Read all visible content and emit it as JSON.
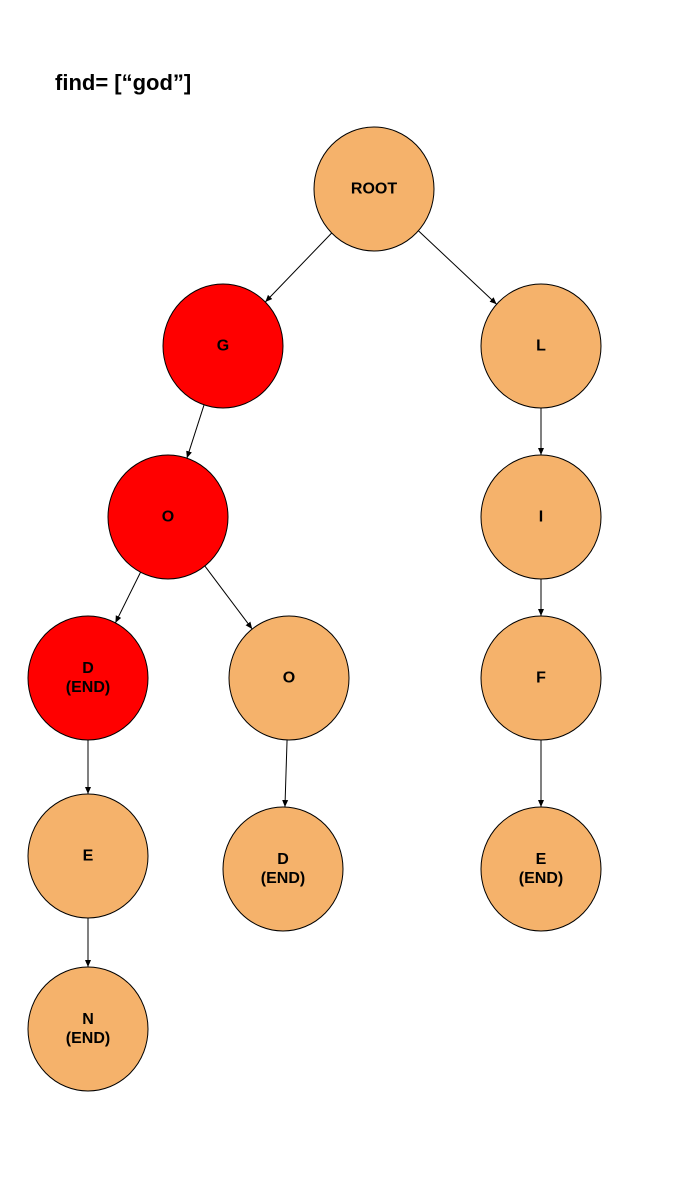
{
  "title": "find= [“god”]",
  "colors": {
    "highlight": "#ff0000",
    "normal": "#f5b26b",
    "stroke": "#000000",
    "edge": "#000000"
  },
  "nodes": [
    {
      "id": "root",
      "lines": [
        "ROOT"
      ],
      "highlight": false
    },
    {
      "id": "g",
      "lines": [
        "G"
      ],
      "highlight": true
    },
    {
      "id": "l",
      "lines": [
        "L"
      ],
      "highlight": false
    },
    {
      "id": "o1",
      "lines": [
        "O"
      ],
      "highlight": true
    },
    {
      "id": "i",
      "lines": [
        "I"
      ],
      "highlight": false
    },
    {
      "id": "d1",
      "lines": [
        "D",
        "(END)"
      ],
      "highlight": true
    },
    {
      "id": "o2",
      "lines": [
        "O"
      ],
      "highlight": false
    },
    {
      "id": "f",
      "lines": [
        "F"
      ],
      "highlight": false
    },
    {
      "id": "e1",
      "lines": [
        "E"
      ],
      "highlight": false
    },
    {
      "id": "d2",
      "lines": [
        "D",
        "(END)"
      ],
      "highlight": false
    },
    {
      "id": "e2",
      "lines": [
        "E",
        "(END)"
      ],
      "highlight": false
    },
    {
      "id": "n",
      "lines": [
        "N",
        "(END)"
      ],
      "highlight": false
    }
  ],
  "edges": [
    {
      "from": "root",
      "to": "g"
    },
    {
      "from": "root",
      "to": "l"
    },
    {
      "from": "g",
      "to": "o1"
    },
    {
      "from": "l",
      "to": "i"
    },
    {
      "from": "o1",
      "to": "d1"
    },
    {
      "from": "o1",
      "to": "o2"
    },
    {
      "from": "i",
      "to": "f"
    },
    {
      "from": "d1",
      "to": "e1"
    },
    {
      "from": "o2",
      "to": "d2"
    },
    {
      "from": "f",
      "to": "e2"
    },
    {
      "from": "e1",
      "to": "n"
    }
  ]
}
